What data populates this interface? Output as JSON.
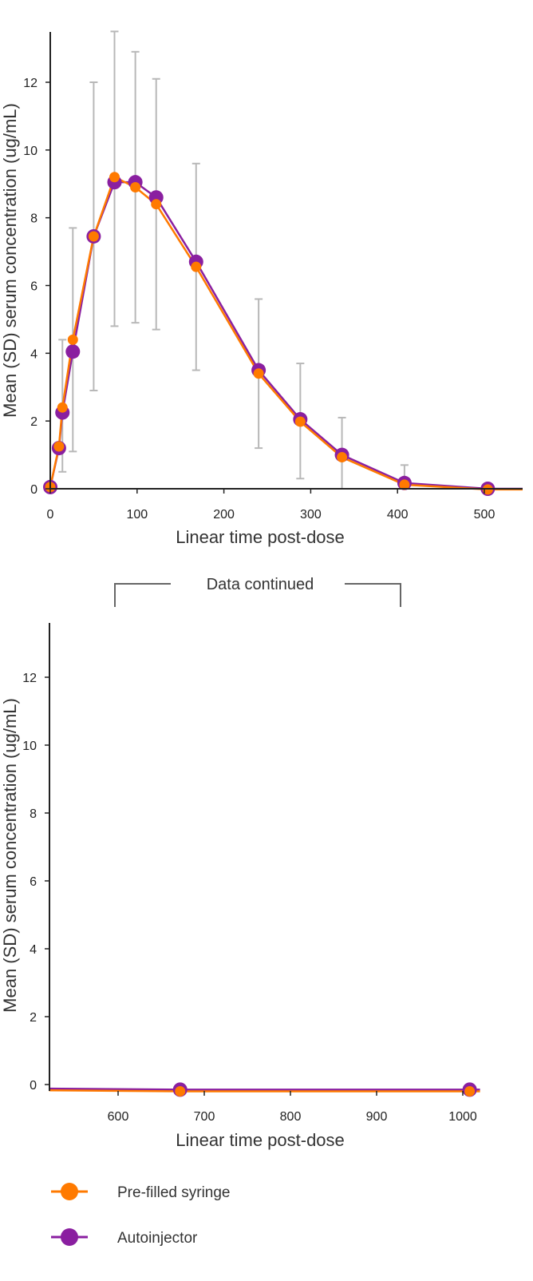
{
  "colors": {
    "prefilled": "#ff7a00",
    "autoinjector": "#8a1fa0",
    "errorbar": "#b8b8b8",
    "axis": "#222222",
    "bracket": "#666666"
  },
  "continued_label": "Data continued",
  "legend": [
    {
      "label": "Pre-filled syringe",
      "series": "prefilled"
    },
    {
      "label": "Autoinjector",
      "series": "autoinjector"
    }
  ],
  "chart_data": [
    {
      "type": "line",
      "xlabel": "Linear time post-dose",
      "ylabel": "Mean (SD) serum concentration (ug/mL)",
      "xlim": [
        0,
        545
      ],
      "ylim": [
        0,
        13.5
      ],
      "xticks": [
        0,
        100,
        200,
        300,
        400,
        500
      ],
      "yticks": [
        0,
        2,
        4,
        6,
        8,
        10,
        12
      ],
      "error_bars": [
        {
          "x": 14,
          "low": 0.5,
          "high": 4.4
        },
        {
          "x": 26,
          "low": 1.1,
          "high": 7.7
        },
        {
          "x": 50,
          "low": 2.9,
          "high": 12.0
        },
        {
          "x": 74,
          "low": 4.8,
          "high": 13.5
        },
        {
          "x": 98,
          "low": 4.9,
          "high": 12.9
        },
        {
          "x": 122,
          "low": 4.7,
          "high": 12.1
        },
        {
          "x": 168,
          "low": 3.5,
          "high": 9.6
        },
        {
          "x": 240,
          "low": 1.2,
          "high": 5.6
        },
        {
          "x": 288,
          "low": 0.3,
          "high": 3.7
        },
        {
          "x": 336,
          "low": 0.0,
          "high": 2.1
        },
        {
          "x": 408,
          "low": 0.0,
          "high": 0.7
        }
      ],
      "series": [
        {
          "name": "Autoinjector",
          "key": "autoinjector",
          "x": [
            0,
            10,
            14,
            26,
            50,
            74,
            98,
            122,
            168,
            240,
            288,
            336,
            408,
            504,
            545
          ],
          "y": [
            0.05,
            1.2,
            2.25,
            4.05,
            7.45,
            9.05,
            9.05,
            8.6,
            6.7,
            3.5,
            2.05,
            1.0,
            0.17,
            0.0,
            0.0
          ]
        },
        {
          "name": "Pre-filled syringe",
          "key": "prefilled",
          "x": [
            0,
            10,
            14,
            26,
            50,
            74,
            98,
            122,
            168,
            240,
            288,
            336,
            408,
            504,
            545
          ],
          "y": [
            0.05,
            1.25,
            2.4,
            4.4,
            7.45,
            9.2,
            8.9,
            8.4,
            6.55,
            3.4,
            1.98,
            0.93,
            0.12,
            -0.02,
            -0.02
          ]
        }
      ]
    },
    {
      "type": "line",
      "xlabel": "Linear time post-dose",
      "ylabel": "Mean (SD) serum concentration (ug/mL)",
      "xlim": [
        520,
        1020
      ],
      "ylim": [
        0,
        13.5
      ],
      "xticks": [
        600,
        700,
        800,
        900,
        1000
      ],
      "yticks": [
        0,
        2,
        4,
        6,
        8,
        10,
        12
      ],
      "series": [
        {
          "name": "Autoinjector",
          "key": "autoinjector",
          "x": [
            520,
            672,
            1008,
            1020
          ],
          "y": [
            -0.12,
            -0.15,
            -0.15,
            -0.15
          ]
        },
        {
          "name": "Pre-filled syringe",
          "key": "prefilled",
          "x": [
            520,
            672,
            1008,
            1020
          ],
          "y": [
            -0.17,
            -0.2,
            -0.2,
            -0.2
          ]
        }
      ]
    }
  ]
}
